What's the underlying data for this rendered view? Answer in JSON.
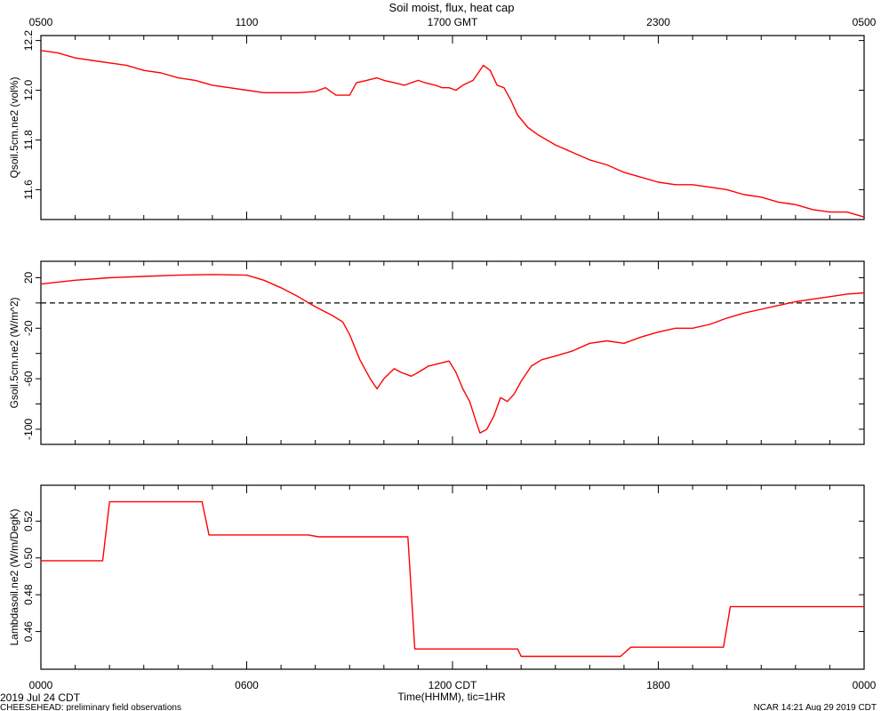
{
  "title": "Soil moist, flux, heat cap",
  "top_axis_ticks": [
    "0500",
    "1100",
    "1700 GMT",
    "2300",
    "0500"
  ],
  "bottom_axis_ticks": [
    "0000",
    "0600",
    "1200 CDT",
    "1800",
    "0000"
  ],
  "xlabel": "Time(HHMM), tic=1HR",
  "date_label": "2019 Jul 24 CDT",
  "footer_left": "CHEESEHEAD: preliminary field observations",
  "footer_right": "NCAR 14:21 Aug 29 2019 CDT",
  "colors": {
    "series": "#ff0000",
    "axis": "#000000",
    "zero_line": "#000000"
  },
  "chart_data": [
    {
      "type": "line",
      "ylabel": "Qsoil.5cm.ne2 (vol%)",
      "ylim": [
        11.48,
        12.22
      ],
      "yticks": [
        11.6,
        11.8,
        12.0,
        12.2
      ],
      "ytick_labels": [
        "11.6",
        "11.8",
        "12.0",
        "12.2"
      ],
      "xlim": [
        0,
        24
      ],
      "x": [
        0,
        0.5,
        1,
        1.5,
        2,
        2.5,
        3,
        3.5,
        4,
        4.5,
        5,
        5.5,
        6,
        6.5,
        7,
        7.5,
        8,
        8.3,
        8.6,
        9,
        9.2,
        9.5,
        9.8,
        10,
        10.3,
        10.6,
        11,
        11.2,
        11.5,
        11.7,
        11.9,
        12.1,
        12.3,
        12.6,
        12.9,
        13.1,
        13.3,
        13.5,
        13.7,
        13.9,
        14.2,
        14.5,
        15,
        15.5,
        16,
        16.5,
        17,
        17.5,
        18,
        18.5,
        19,
        19.5,
        20,
        20.5,
        21,
        21.5,
        22,
        22.5,
        23,
        23.5,
        24
      ],
      "y": [
        12.16,
        12.15,
        12.13,
        12.12,
        12.11,
        12.1,
        12.08,
        12.07,
        12.05,
        12.04,
        12.02,
        12.01,
        12.0,
        11.99,
        11.99,
        11.99,
        11.995,
        12.01,
        11.98,
        11.98,
        12.03,
        12.04,
        12.05,
        12.04,
        12.03,
        12.02,
        12.04,
        12.03,
        12.02,
        12.01,
        12.01,
        12.0,
        12.02,
        12.04,
        12.1,
        12.08,
        12.02,
        12.01,
        11.96,
        11.9,
        11.85,
        11.82,
        11.78,
        11.75,
        11.72,
        11.7,
        11.67,
        11.65,
        11.63,
        11.62,
        11.62,
        11.61,
        11.6,
        11.58,
        11.57,
        11.55,
        11.54,
        11.52,
        11.51,
        11.51,
        11.49
      ]
    },
    {
      "type": "line",
      "ylabel": "Gsoil.5cm.ne2 (W/m^2)",
      "ylim": [
        -112,
        33
      ],
      "yticks": [
        -100,
        -60,
        -20,
        20
      ],
      "ytick_labels": [
        "-100",
        "-60",
        "-20",
        "20"
      ],
      "minor_yticks": [
        -80,
        -40,
        0
      ],
      "zero_line": true,
      "xlim": [
        0,
        24
      ],
      "x": [
        0,
        1,
        2,
        3,
        4,
        5,
        6,
        6.5,
        7,
        7.5,
        8,
        8.5,
        8.8,
        9,
        9.3,
        9.6,
        9.8,
        10,
        10.3,
        10.5,
        10.8,
        11,
        11.3,
        11.6,
        11.9,
        12.1,
        12.3,
        12.5,
        12.7,
        12.8,
        13.0,
        13.2,
        13.4,
        13.6,
        13.8,
        14.0,
        14.3,
        14.6,
        15,
        15.5,
        16,
        16.5,
        17,
        17.5,
        18,
        18.5,
        19,
        19.5,
        20,
        20.5,
        21,
        21.5,
        22,
        22.5,
        23,
        23.5,
        24
      ],
      "y": [
        15,
        18,
        20,
        21,
        22,
        22.5,
        22,
        18,
        12,
        5,
        -3,
        -10,
        -15,
        -25,
        -45,
        -60,
        -68,
        -60,
        -52,
        -55,
        -58,
        -55,
        -50,
        -48,
        -46,
        -55,
        -68,
        -78,
        -95,
        -103,
        -100,
        -90,
        -75,
        -78,
        -72,
        -62,
        -50,
        -45,
        -42,
        -38,
        -32,
        -30,
        -32,
        -27,
        -23,
        -20,
        -20,
        -17,
        -12,
        -8,
        -5,
        -2,
        1,
        3,
        5,
        7,
        8
      ]
    },
    {
      "type": "line",
      "ylabel": "Lambdasoil.ne2 (W/m/DegK)",
      "ylim": [
        0.4395,
        0.5395
      ],
      "yticks": [
        0.46,
        0.48,
        0.5,
        0.52
      ],
      "ytick_labels": [
        "0.46",
        "0.48",
        "0.50",
        "0.52"
      ],
      "xlim": [
        0,
        24
      ],
      "x": [
        0,
        1.8,
        2.0,
        4.7,
        4.9,
        7.8,
        8.1,
        10.7,
        10.9,
        13.9,
        14.0,
        16.9,
        17.2,
        19.9,
        20.1,
        24
      ],
      "y": [
        0.4985,
        0.4985,
        0.5305,
        0.5305,
        0.5125,
        0.5125,
        0.5115,
        0.5115,
        0.4505,
        0.4505,
        0.4465,
        0.4465,
        0.4515,
        0.4515,
        0.4735,
        0.4735
      ]
    }
  ]
}
